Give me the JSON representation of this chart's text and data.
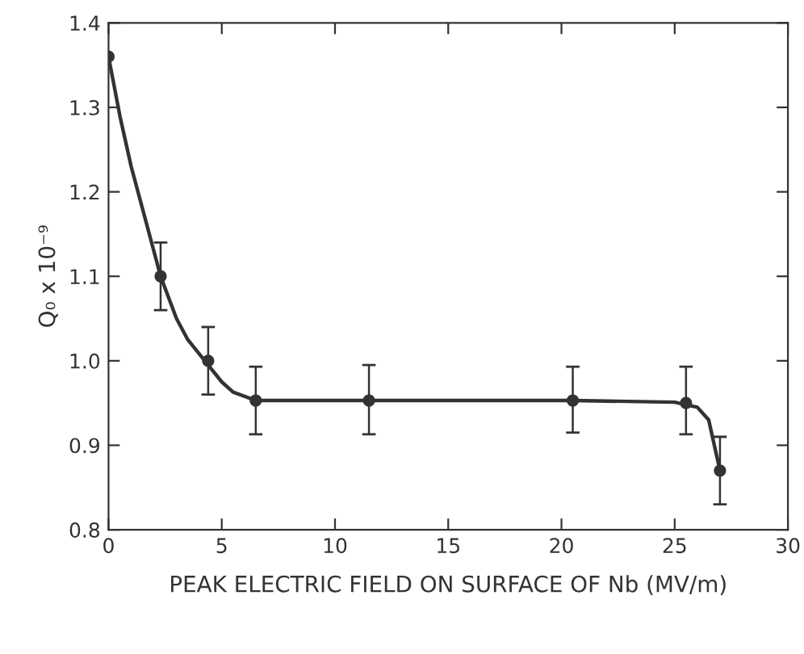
{
  "chart_data": {
    "type": "scatter",
    "xlabel": "PEAK ELECTRIC FIELD ON SURFACE OF Nb (MV/m)",
    "ylabel": "Q₀ x 10⁻⁹",
    "xlim": [
      0,
      30
    ],
    "xticks": [
      0,
      5,
      10,
      15,
      20,
      25,
      30
    ],
    "ylim": [
      0.8,
      1.4
    ],
    "yticks": [
      {
        "value": 0.8,
        "label": "0.8"
      },
      {
        "value": 0.9,
        "label": "0.9"
      },
      {
        "value": 1.0,
        "label": "1.0"
      },
      {
        "value": 1.1,
        "label": "1.1"
      },
      {
        "value": 1.2,
        "label": "1.2"
      },
      {
        "value": 1.3,
        "label": "1.3"
      },
      {
        "value": 1.4,
        "label": "1.4"
      }
    ],
    "grid": false,
    "series": [
      {
        "marker": "circle",
        "color": "#333333",
        "x": [
          0,
          2.3,
          4.4,
          6.5,
          11.5,
          20.5,
          25.5,
          27
        ],
        "values": [
          1.36,
          1.1,
          1.0,
          0.953,
          0.953,
          0.953,
          0.95,
          0.87
        ],
        "errors": [
          null,
          0.04,
          0.04,
          0.04,
          [
            0.913,
            0.995
          ],
          [
            0.915,
            0.993
          ],
          [
            0.913,
            0.993
          ],
          0.04
        ]
      },
      {
        "type": "line",
        "color": "#333333",
        "line_style": "solid",
        "x": [
          0,
          0.5,
          1,
          1.5,
          2.3,
          3,
          3.5,
          4.4,
          5,
          5.5,
          6.5,
          11.5,
          20.5,
          25,
          26,
          26.5,
          27
        ],
        "values": [
          1.36,
          1.29,
          1.23,
          1.18,
          1.1,
          1.05,
          1.025,
          0.995,
          0.975,
          0.963,
          0.953,
          0.953,
          0.953,
          0.951,
          0.945,
          0.93,
          0.87
        ]
      }
    ]
  }
}
